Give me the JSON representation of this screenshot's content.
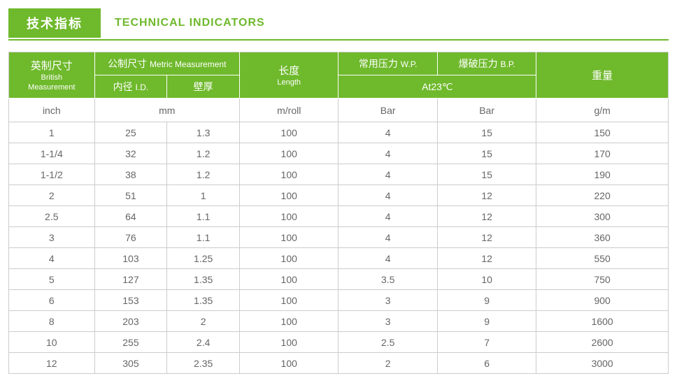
{
  "title": {
    "cn": "技术指标",
    "en": "TECHNICAL INDICATORS"
  },
  "colors": {
    "brand": "#6fb92c",
    "border": "#cccccc",
    "text": "#666666",
    "white": "#ffffff"
  },
  "header": {
    "british": {
      "cn": "英制尺寸",
      "en1": "British",
      "en2": "Measurement"
    },
    "metric": {
      "cn": "公制尺寸",
      "en": "Metric Measurement"
    },
    "id": {
      "cn": "内径",
      "en": "I.D."
    },
    "wall": {
      "cn": "壁厚"
    },
    "length": {
      "cn": "长度",
      "en": "Length"
    },
    "wp": {
      "cn": "常用压力",
      "en": "W.P."
    },
    "bp": {
      "cn": "爆破压力",
      "en": "B.P."
    },
    "at23": "At23℃",
    "weight": {
      "cn": "重量"
    }
  },
  "units": {
    "inch": "inch",
    "mm": "mm",
    "mroll": "m/roll",
    "bar_wp": "Bar",
    "bar_bp": "Bar",
    "gm": "g/m"
  },
  "col_widths_pct": [
    13,
    11,
    11,
    15,
    15,
    15,
    20
  ],
  "rows": [
    {
      "inch": "1",
      "id": "25",
      "wall": "1.3",
      "len": "100",
      "wp": "4",
      "bp": "15",
      "wt": "150"
    },
    {
      "inch": "1-1/4",
      "id": "32",
      "wall": "1.2",
      "len": "100",
      "wp": "4",
      "bp": "15",
      "wt": "170"
    },
    {
      "inch": "1-1/2",
      "id": "38",
      "wall": "1.2",
      "len": "100",
      "wp": "4",
      "bp": "15",
      "wt": "190"
    },
    {
      "inch": "2",
      "id": "51",
      "wall": "1",
      "len": "100",
      "wp": "4",
      "bp": "12",
      "wt": "220"
    },
    {
      "inch": "2.5",
      "id": "64",
      "wall": "1.1",
      "len": "100",
      "wp": "4",
      "bp": "12",
      "wt": "300"
    },
    {
      "inch": "3",
      "id": "76",
      "wall": "1.1",
      "len": "100",
      "wp": "4",
      "bp": "12",
      "wt": "360"
    },
    {
      "inch": "4",
      "id": "103",
      "wall": "1.25",
      "len": "100",
      "wp": "4",
      "bp": "12",
      "wt": "550"
    },
    {
      "inch": "5",
      "id": "127",
      "wall": "1.35",
      "len": "100",
      "wp": "3.5",
      "bp": "10",
      "wt": "750"
    },
    {
      "inch": "6",
      "id": "153",
      "wall": "1.35",
      "len": "100",
      "wp": "3",
      "bp": "9",
      "wt": "900"
    },
    {
      "inch": "8",
      "id": "203",
      "wall": "2",
      "len": "100",
      "wp": "3",
      "bp": "9",
      "wt": "1600"
    },
    {
      "inch": "10",
      "id": "255",
      "wall": "2.4",
      "len": "100",
      "wp": "2.5",
      "bp": "7",
      "wt": "2600"
    },
    {
      "inch": "12",
      "id": "305",
      "wall": "2.35",
      "len": "100",
      "wp": "2",
      "bp": "6",
      "wt": "3000"
    }
  ]
}
